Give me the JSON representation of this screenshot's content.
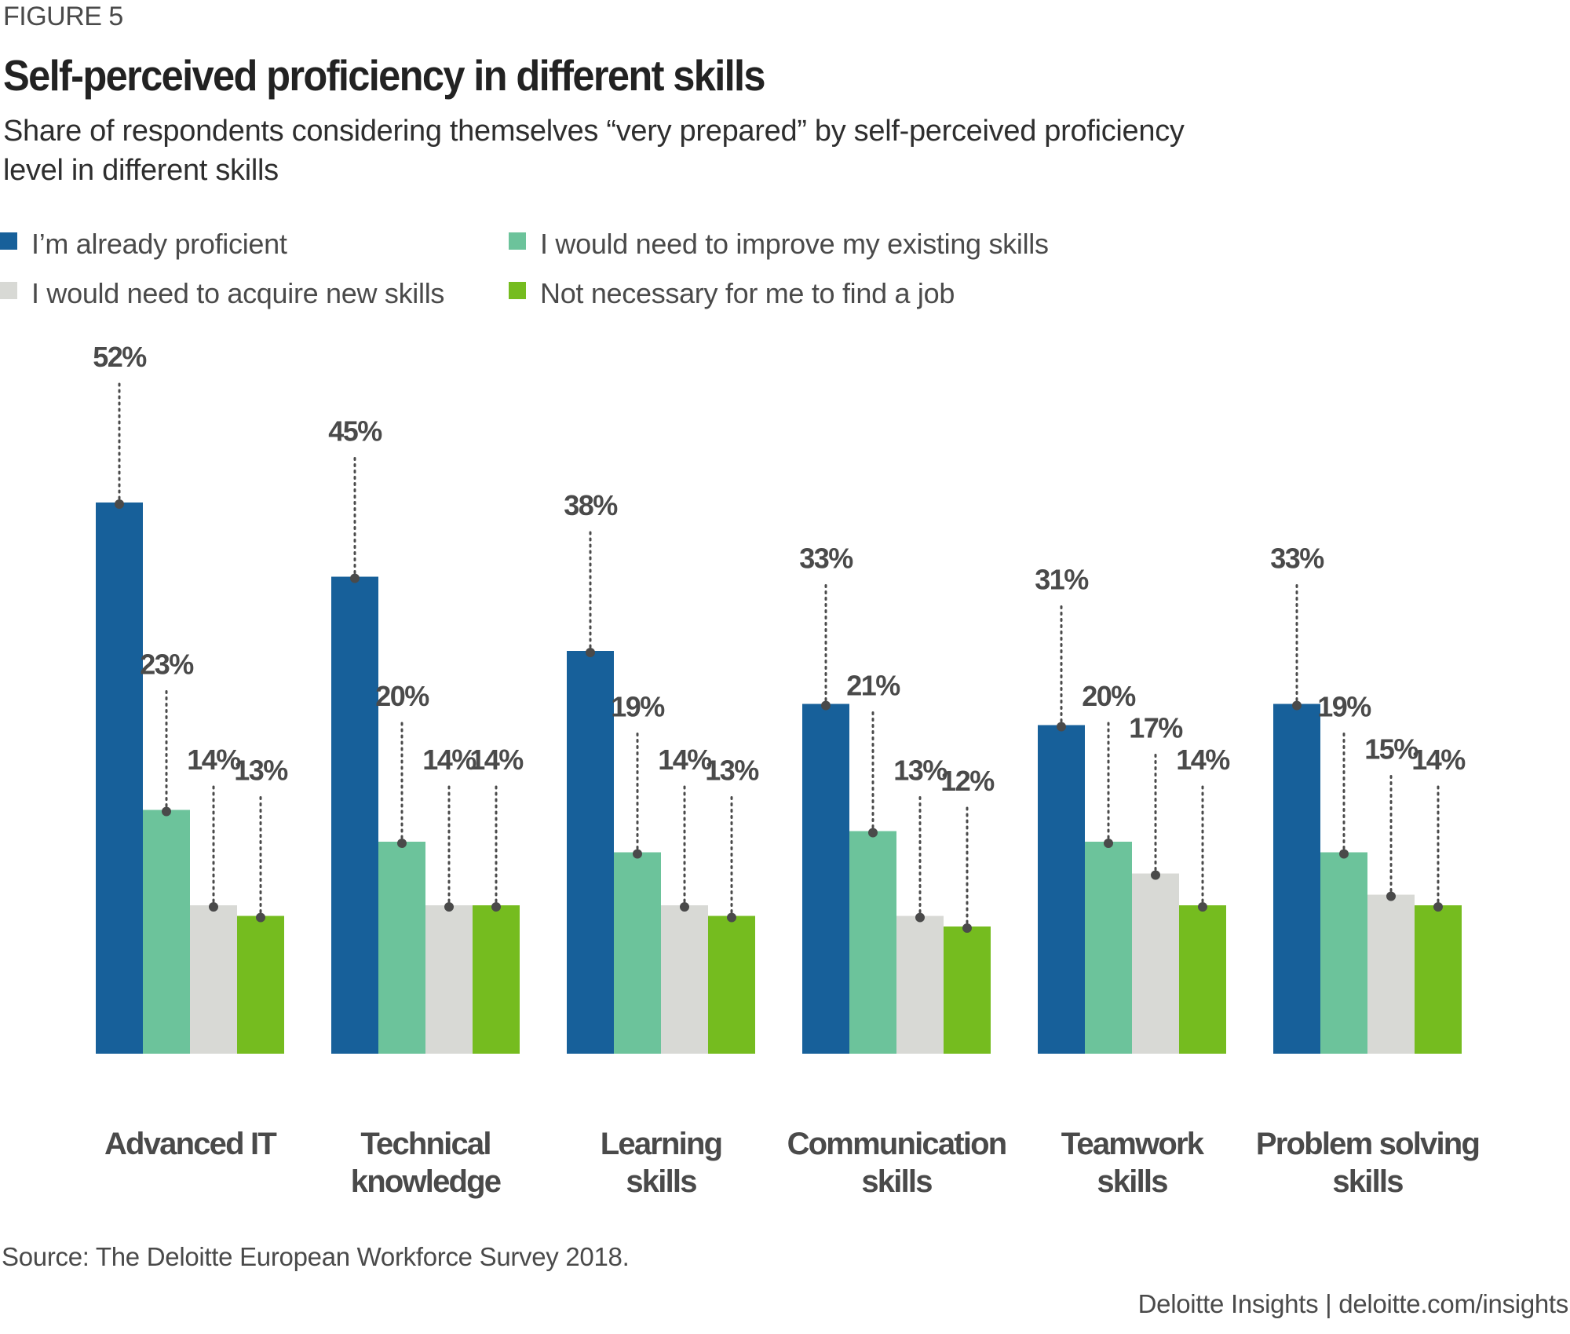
{
  "figure_label": "FIGURE 5",
  "source": "Source: The Deloitte European Workforce Survey 2018.",
  "footer": "Deloitte Insights | deloitte.com/insights",
  "chart_data": {
    "type": "bar",
    "title": "Self-perceived proficiency in different skills",
    "subtitle_lines": [
      "Share of respondents considering themselves “very prepared” by self-perceived proficiency",
      "level in different skills"
    ],
    "xlabel": "",
    "ylabel": "",
    "ylim": [
      0,
      52
    ],
    "grid": false,
    "legend_position": "top-left",
    "categories": [
      [
        "Advanced IT"
      ],
      [
        "Technical",
        "knowledge"
      ],
      [
        "Learning",
        "skills"
      ],
      [
        "Communication",
        "skills"
      ],
      [
        "Teamwork",
        "skills"
      ],
      [
        "Problem solving",
        "skills"
      ]
    ],
    "category_names": [
      "Advanced IT",
      "Technical knowledge",
      "Learning skills",
      "Communication skills",
      "Teamwork skills",
      "Problem solving skills"
    ],
    "series": [
      {
        "name": "I’m already proficient",
        "color": "#17609a",
        "values": [
          52,
          45,
          38,
          33,
          31,
          33
        ]
      },
      {
        "name": "I would need to improve my existing skills",
        "color": "#6cc39b",
        "values": [
          23,
          20,
          19,
          21,
          20,
          19
        ]
      },
      {
        "name": "I would need to acquire new skills",
        "color": "#d8d9d5",
        "values": [
          14,
          14,
          14,
          13,
          17,
          15
        ]
      },
      {
        "name": "Not necessary for me to find a job",
        "color": "#75bc1f",
        "values": [
          13,
          14,
          13,
          12,
          14,
          14
        ]
      }
    ],
    "value_suffix": "%",
    "label_color": "#4a4a4a"
  },
  "legend_layout": [
    [
      0,
      1
    ],
    [
      2,
      3
    ]
  ]
}
